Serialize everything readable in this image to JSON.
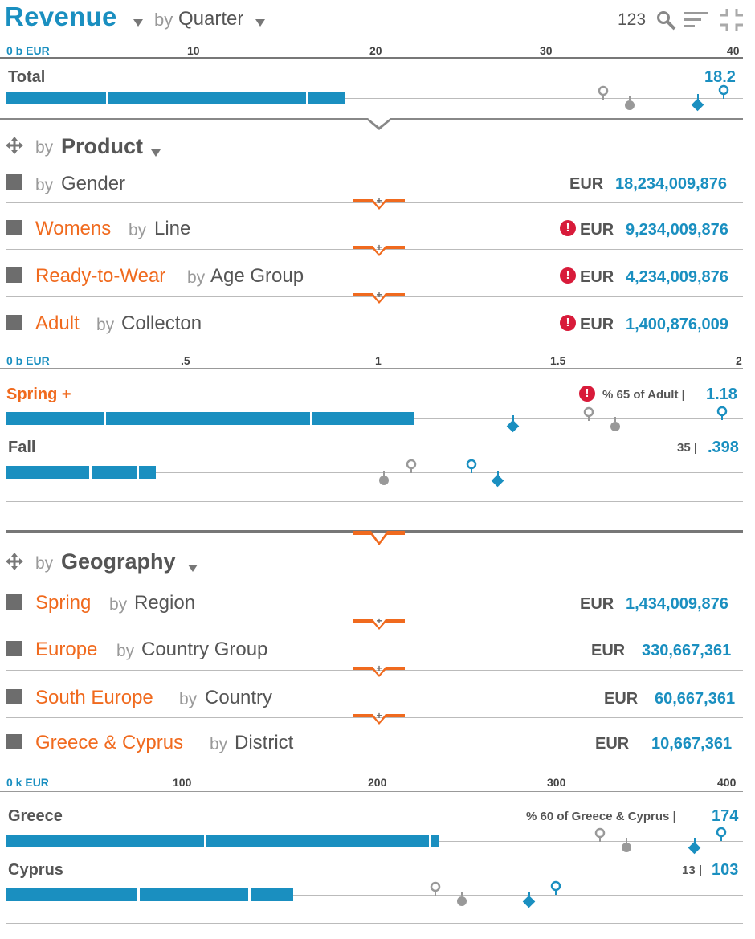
{
  "header": {
    "title": "Revenue",
    "by": "by",
    "dimension": "Quarter",
    "toolbar": {
      "number_label": "123"
    }
  },
  "top_axis": {
    "unit": "0 b EUR",
    "ticks": [
      "10",
      "20",
      "30",
      "40"
    ]
  },
  "total": {
    "label": "Total",
    "value": "18.2"
  },
  "product": {
    "by": "by",
    "title": "Product",
    "rows": [
      {
        "name": "",
        "by": "by",
        "dim": "Gender",
        "currency": "EUR",
        "value": "18,234,009,876",
        "alert": false
      },
      {
        "name": "Womens",
        "by": "by",
        "dim": "Line",
        "currency": "EUR",
        "value": "9,234,009,876",
        "alert": true
      },
      {
        "name": "Ready-to-Wear",
        "by": "by",
        "dim": "Age Group",
        "currency": "EUR",
        "value": "4,234,009,876",
        "alert": true
      },
      {
        "name": "Adult",
        "by": "by",
        "dim": "Collecton",
        "currency": "EUR",
        "value": "1,400,876,009",
        "alert": true
      }
    ],
    "axis": {
      "unit": "0 b EUR",
      "ticks": [
        ".5",
        "1",
        "1.5",
        "2"
      ]
    },
    "items": [
      {
        "label": "Spring +",
        "pct": "% 65 of Adult |",
        "value": "1.18",
        "alert": true
      },
      {
        "label": "Fall",
        "pct": "35 |",
        "value": ".398",
        "alert": false
      }
    ]
  },
  "geography": {
    "by": "by",
    "title": "Geography",
    "rows": [
      {
        "name": "Spring",
        "by": "by",
        "dim": "Region",
        "currency": "EUR",
        "value": "1,434,009,876"
      },
      {
        "name": "Europe",
        "by": "by",
        "dim": "Country Group",
        "currency": "EUR",
        "value": "330,667,361"
      },
      {
        "name": "South Europe",
        "by": "by",
        "dim": "Country",
        "currency": "EUR",
        "value": "60,667,361"
      },
      {
        "name": "Greece & Cyprus",
        "by": "by",
        "dim": "District",
        "currency": "EUR",
        "value": "10,667,361"
      }
    ],
    "axis": {
      "unit": "0 k EUR",
      "ticks": [
        "100",
        "200",
        "300",
        "400"
      ]
    },
    "items": [
      {
        "label": "Greece",
        "pct": "% 60 of Greece & Cyprus |",
        "value": "174"
      },
      {
        "label": "Cyprus",
        "pct": "13 |",
        "value": "103"
      }
    ]
  },
  "icons": {
    "expand": "plus-icon",
    "move": "move-arrows-icon",
    "alert": "exclamation-icon",
    "search": "magnifier-icon",
    "sort": "sort-lines-icon",
    "collapse": "collapse-icon"
  },
  "colors": {
    "accent": "#1a8fc0",
    "highlight": "#f06a1e",
    "alert": "#d81b3a",
    "marker_grey": "#999999"
  },
  "chart_data": [
    {
      "type": "bar",
      "categories": [
        "Total"
      ],
      "values": [
        18.2
      ],
      "xlim": [
        0,
        40
      ],
      "xlabel": "0 b EUR"
    },
    {
      "type": "bar",
      "categories": [
        "Spring +",
        "Fall"
      ],
      "values": [
        1.18,
        0.398
      ],
      "xlim": [
        0,
        2
      ],
      "xlabel": "0 b EUR"
    },
    {
      "type": "bar",
      "categories": [
        "Greece",
        "Cyprus"
      ],
      "values": [
        174,
        103
      ],
      "xlim": [
        0,
        400
      ],
      "xlabel": "0 k EUR"
    }
  ]
}
